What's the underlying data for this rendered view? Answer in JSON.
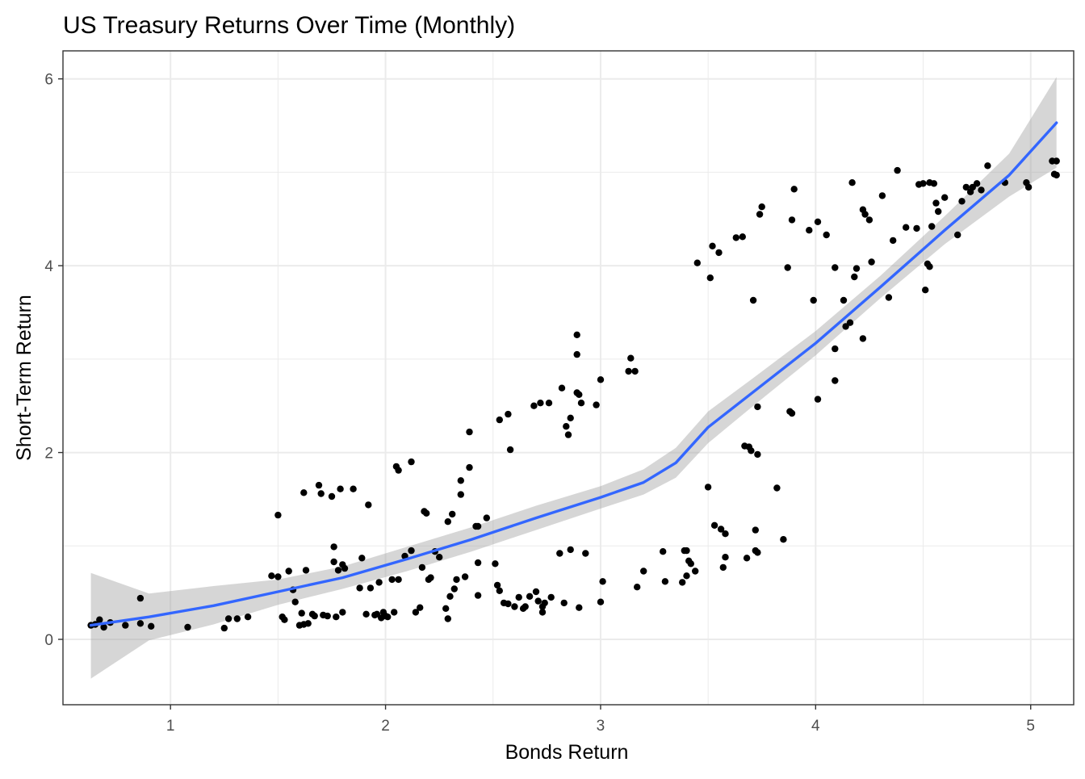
{
  "chart_data": {
    "type": "scatter",
    "title": "US Treasury Returns Over Time (Monthly)",
    "xlabel": "Bonds Return",
    "ylabel": "Short-Term Return",
    "xlim": [
      0.5,
      5.2
    ],
    "ylim": [
      -0.7,
      6.3
    ],
    "x_ticks": [
      1,
      2,
      3,
      4,
      5
    ],
    "y_ticks": [
      0,
      2,
      4,
      6
    ],
    "x_tick_labels": [
      "1",
      "2",
      "3",
      "4",
      "5"
    ],
    "y_tick_labels": [
      "0",
      "2",
      "4",
      "6"
    ],
    "grid": true,
    "legend": "none",
    "colors": {
      "points": "#000000",
      "smooth_line": "#3366FF",
      "ribbon": "#999999",
      "grid": "#ebebeb",
      "panel_border": "#333333"
    },
    "points": [
      [
        0.63,
        0.15
      ],
      [
        0.65,
        0.16
      ],
      [
        0.67,
        0.21
      ],
      [
        0.69,
        0.13
      ],
      [
        0.72,
        0.18
      ],
      [
        0.79,
        0.15
      ],
      [
        0.86,
        0.44
      ],
      [
        0.86,
        0.17
      ],
      [
        0.91,
        0.14
      ],
      [
        1.08,
        0.13
      ],
      [
        1.25,
        0.12
      ],
      [
        1.27,
        0.22
      ],
      [
        1.31,
        0.22
      ],
      [
        1.36,
        0.24
      ],
      [
        1.47,
        0.68
      ],
      [
        1.5,
        0.67
      ],
      [
        1.5,
        1.33
      ],
      [
        1.52,
        0.24
      ],
      [
        1.53,
        0.21
      ],
      [
        1.55,
        0.73
      ],
      [
        1.57,
        0.53
      ],
      [
        1.58,
        0.4
      ],
      [
        1.6,
        0.15
      ],
      [
        1.61,
        0.28
      ],
      [
        1.62,
        0.16
      ],
      [
        1.62,
        1.57
      ],
      [
        1.63,
        0.74
      ],
      [
        1.64,
        0.17
      ],
      [
        1.66,
        0.27
      ],
      [
        1.67,
        0.25
      ],
      [
        1.69,
        1.65
      ],
      [
        1.7,
        1.56
      ],
      [
        1.71,
        0.26
      ],
      [
        1.73,
        0.25
      ],
      [
        1.75,
        1.53
      ],
      [
        1.76,
        0.99
      ],
      [
        1.76,
        0.83
      ],
      [
        1.77,
        0.24
      ],
      [
        1.78,
        0.74
      ],
      [
        1.79,
        1.61
      ],
      [
        1.8,
        0.8
      ],
      [
        1.8,
        0.29
      ],
      [
        1.81,
        0.76
      ],
      [
        1.85,
        1.61
      ],
      [
        1.88,
        0.55
      ],
      [
        1.89,
        0.87
      ],
      [
        1.91,
        0.27
      ],
      [
        1.92,
        1.44
      ],
      [
        1.93,
        0.55
      ],
      [
        1.95,
        0.26
      ],
      [
        1.96,
        0.27
      ],
      [
        1.97,
        0.61
      ],
      [
        1.98,
        0.23
      ],
      [
        1.99,
        0.29
      ],
      [
        2.0,
        0.25
      ],
      [
        2.01,
        0.24
      ],
      [
        2.03,
        0.64
      ],
      [
        2.04,
        0.29
      ],
      [
        2.05,
        1.85
      ],
      [
        2.06,
        0.64
      ],
      [
        2.06,
        1.81
      ],
      [
        2.09,
        0.89
      ],
      [
        2.12,
        1.9
      ],
      [
        2.12,
        0.95
      ],
      [
        2.14,
        0.29
      ],
      [
        2.16,
        0.34
      ],
      [
        2.17,
        0.77
      ],
      [
        2.18,
        1.37
      ],
      [
        2.19,
        1.35
      ],
      [
        2.2,
        0.64
      ],
      [
        2.21,
        0.66
      ],
      [
        2.23,
        0.94
      ],
      [
        2.25,
        0.88
      ],
      [
        2.28,
        0.33
      ],
      [
        2.29,
        0.22
      ],
      [
        2.29,
        1.26
      ],
      [
        2.3,
        0.46
      ],
      [
        2.31,
        1.34
      ],
      [
        2.32,
        0.54
      ],
      [
        2.33,
        0.64
      ],
      [
        2.35,
        1.55
      ],
      [
        2.35,
        1.7
      ],
      [
        2.37,
        0.67
      ],
      [
        2.39,
        1.84
      ],
      [
        2.39,
        2.22
      ],
      [
        2.42,
        1.21
      ],
      [
        2.43,
        1.21
      ],
      [
        2.43,
        0.82
      ],
      [
        2.43,
        0.47
      ],
      [
        2.47,
        1.3
      ],
      [
        2.51,
        0.81
      ],
      [
        2.52,
        0.58
      ],
      [
        2.53,
        2.35
      ],
      [
        2.53,
        0.52
      ],
      [
        2.55,
        0.39
      ],
      [
        2.57,
        2.41
      ],
      [
        2.57,
        0.38
      ],
      [
        2.58,
        2.03
      ],
      [
        2.6,
        0.35
      ],
      [
        2.62,
        0.45
      ],
      [
        2.64,
        0.33
      ],
      [
        2.65,
        0.35
      ],
      [
        2.67,
        0.46
      ],
      [
        2.69,
        2.5
      ],
      [
        2.7,
        0.51
      ],
      [
        2.71,
        0.41
      ],
      [
        2.72,
        2.53
      ],
      [
        2.73,
        0.35
      ],
      [
        2.73,
        0.29
      ],
      [
        2.74,
        0.39
      ],
      [
        2.76,
        2.53
      ],
      [
        2.77,
        0.45
      ],
      [
        2.81,
        0.92
      ],
      [
        2.82,
        2.69
      ],
      [
        2.83,
        0.39
      ],
      [
        2.84,
        2.28
      ],
      [
        2.85,
        2.19
      ],
      [
        2.86,
        2.37
      ],
      [
        2.86,
        0.96
      ],
      [
        2.89,
        2.64
      ],
      [
        2.89,
        3.26
      ],
      [
        2.89,
        3.05
      ],
      [
        2.9,
        0.34
      ],
      [
        2.9,
        2.62
      ],
      [
        2.91,
        2.53
      ],
      [
        2.93,
        0.92
      ],
      [
        2.98,
        2.51
      ],
      [
        3.0,
        2.78
      ],
      [
        3.0,
        0.4
      ],
      [
        3.01,
        0.62
      ],
      [
        3.13,
        2.87
      ],
      [
        3.14,
        3.01
      ],
      [
        3.16,
        2.87
      ],
      [
        3.17,
        0.56
      ],
      [
        3.2,
        0.73
      ],
      [
        3.29,
        0.94
      ],
      [
        3.3,
        0.62
      ],
      [
        3.38,
        0.61
      ],
      [
        3.39,
        0.95
      ],
      [
        3.4,
        0.95
      ],
      [
        3.4,
        0.68
      ],
      [
        3.41,
        0.84
      ],
      [
        3.42,
        0.81
      ],
      [
        3.44,
        0.73
      ],
      [
        3.45,
        4.03
      ],
      [
        3.5,
        1.63
      ],
      [
        3.51,
        3.87
      ],
      [
        3.52,
        4.21
      ],
      [
        3.53,
        1.22
      ],
      [
        3.55,
        4.14
      ],
      [
        3.56,
        1.18
      ],
      [
        3.57,
        0.77
      ],
      [
        3.58,
        0.88
      ],
      [
        3.58,
        1.13
      ],
      [
        3.63,
        4.3
      ],
      [
        3.66,
        4.31
      ],
      [
        3.67,
        2.07
      ],
      [
        3.68,
        0.87
      ],
      [
        3.69,
        2.06
      ],
      [
        3.7,
        2.02
      ],
      [
        3.71,
        3.63
      ],
      [
        3.72,
        1.17
      ],
      [
        3.72,
        0.95
      ],
      [
        3.73,
        0.93
      ],
      [
        3.73,
        2.49
      ],
      [
        3.73,
        1.98
      ],
      [
        3.74,
        4.55
      ],
      [
        3.75,
        4.63
      ],
      [
        3.82,
        1.62
      ],
      [
        3.85,
        1.07
      ],
      [
        3.87,
        3.98
      ],
      [
        3.88,
        2.44
      ],
      [
        3.89,
        2.42
      ],
      [
        3.89,
        4.49
      ],
      [
        3.9,
        4.82
      ],
      [
        3.97,
        4.38
      ],
      [
        3.99,
        3.63
      ],
      [
        4.01,
        2.57
      ],
      [
        4.01,
        4.47
      ],
      [
        4.05,
        4.33
      ],
      [
        4.09,
        3.98
      ],
      [
        4.09,
        2.77
      ],
      [
        4.09,
        3.11
      ],
      [
        4.13,
        3.63
      ],
      [
        4.14,
        3.35
      ],
      [
        4.16,
        3.39
      ],
      [
        4.17,
        4.89
      ],
      [
        4.18,
        3.88
      ],
      [
        4.19,
        3.97
      ],
      [
        4.22,
        4.6
      ],
      [
        4.22,
        3.22
      ],
      [
        4.23,
        4.55
      ],
      [
        4.25,
        4.49
      ],
      [
        4.26,
        4.04
      ],
      [
        4.31,
        4.75
      ],
      [
        4.34,
        3.66
      ],
      [
        4.36,
        4.27
      ],
      [
        4.38,
        5.02
      ],
      [
        4.42,
        4.41
      ],
      [
        4.47,
        4.4
      ],
      [
        4.48,
        4.87
      ],
      [
        4.5,
        4.88
      ],
      [
        4.51,
        3.74
      ],
      [
        4.52,
        4.02
      ],
      [
        4.53,
        3.99
      ],
      [
        4.53,
        4.89
      ],
      [
        4.54,
        4.42
      ],
      [
        4.55,
        4.88
      ],
      [
        4.56,
        4.67
      ],
      [
        4.57,
        4.58
      ],
      [
        4.6,
        4.73
      ],
      [
        4.66,
        4.33
      ],
      [
        4.68,
        4.69
      ],
      [
        4.7,
        4.84
      ],
      [
        4.72,
        4.79
      ],
      [
        4.73,
        4.84
      ],
      [
        4.75,
        4.88
      ],
      [
        4.77,
        4.81
      ],
      [
        4.8,
        5.07
      ],
      [
        4.88,
        4.89
      ],
      [
        4.98,
        4.89
      ],
      [
        4.99,
        4.84
      ],
      [
        5.1,
        5.12
      ],
      [
        5.11,
        4.98
      ],
      [
        5.12,
        5.12
      ],
      [
        5.12,
        4.97
      ]
    ],
    "smooth": {
      "x": [
        0.63,
        0.9,
        1.2,
        1.5,
        1.8,
        2.1,
        2.4,
        2.7,
        3.0,
        3.2,
        3.35,
        3.5,
        3.7,
        4.0,
        4.3,
        4.6,
        4.9,
        5.12
      ],
      "y": [
        0.15,
        0.24,
        0.36,
        0.51,
        0.66,
        0.86,
        1.07,
        1.3,
        1.52,
        1.68,
        1.89,
        2.27,
        2.63,
        3.17,
        3.77,
        4.38,
        4.97,
        5.53
      ],
      "ymin": [
        -0.42,
        -0.01,
        0.16,
        0.37,
        0.54,
        0.73,
        0.94,
        1.17,
        1.4,
        1.55,
        1.73,
        2.1,
        2.48,
        3.04,
        3.65,
        4.23,
        4.74,
        5.05
      ],
      "ymax": [
        0.71,
        0.49,
        0.57,
        0.64,
        0.78,
        0.99,
        1.2,
        1.43,
        1.64,
        1.82,
        2.05,
        2.44,
        2.78,
        3.3,
        3.89,
        4.53,
        5.2,
        6.02
      ]
    }
  }
}
